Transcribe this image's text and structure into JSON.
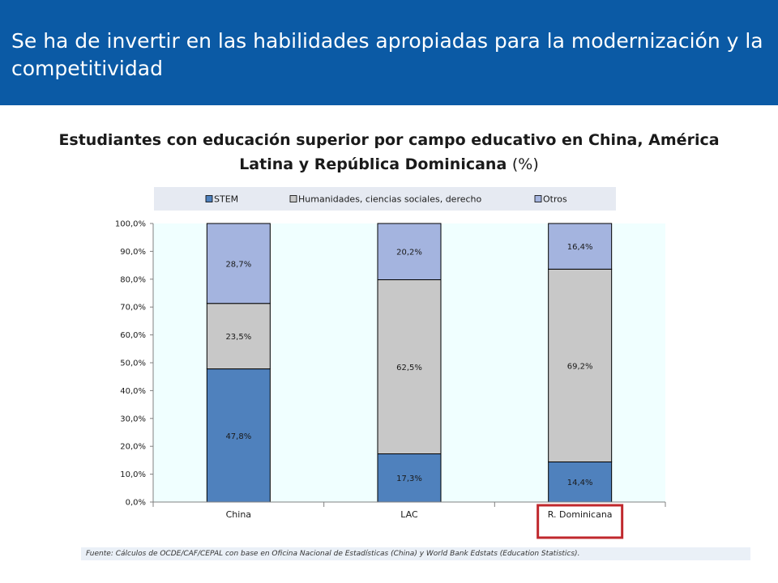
{
  "header": {
    "title": "Se ha de invertir en las habilidades apropiadas para la modernización y la competitividad"
  },
  "chart_data": {
    "type": "bar",
    "stacked": true,
    "title": "Estudiantes con educación superior por campo educativo en China, América Latina y República Dominicana",
    "title_unit": "(%)",
    "categories": [
      "China",
      "LAC",
      "R. Dominicana"
    ],
    "series": [
      {
        "name": "STEM",
        "values": [
          47.8,
          17.3,
          14.4
        ],
        "labels": [
          "47,8%",
          "17,3%",
          "14,4%"
        ],
        "color": "#4f81bd"
      },
      {
        "name": "Humanidades, ciencias sociales, derecho",
        "values": [
          23.5,
          62.5,
          69.2
        ],
        "labels": [
          "23,5%",
          "62,5%",
          "69,2%"
        ],
        "color": "#c8c8c8"
      },
      {
        "name": "Otros",
        "values": [
          28.7,
          20.2,
          16.4
        ],
        "labels": [
          "28,7%",
          "20,2%",
          "16,4%"
        ],
        "color": "#a4b4df"
      }
    ],
    "ylim": [
      0,
      100
    ],
    "yticks": [
      "0,0%",
      "10,0%",
      "20,0%",
      "30,0%",
      "40,0%",
      "50,0%",
      "60,0%",
      "70,0%",
      "80,0%",
      "90,0%",
      "100,0%"
    ],
    "legend_position": "top",
    "highlighted_category": "R. Dominicana",
    "highlight_color": "#c0282d",
    "plot_background": "#f0ffff"
  },
  "footer": {
    "source": "Fuente: Cálculos de OCDE/CAF/CEPAL con base en Oficina Nacional de Estadísticas (China) y World Bank Edstats (Education Statistics)."
  }
}
